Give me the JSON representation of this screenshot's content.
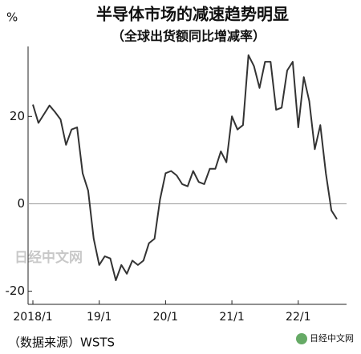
{
  "chart_data": {
    "type": "line",
    "title": "半导体市场的减速趋势明显",
    "subtitle": "（全球出货额同比增减率）",
    "ylabel": "%",
    "source": "（数据来源）WSTS",
    "watermark": "日经中文网",
    "logo": "日经中文网",
    "categories": [
      "2018/1",
      null,
      null,
      null,
      null,
      null,
      null,
      null,
      null,
      null,
      null,
      null,
      "19/1",
      null,
      null,
      null,
      null,
      null,
      null,
      null,
      null,
      null,
      null,
      null,
      "20/1",
      null,
      null,
      null,
      null,
      null,
      null,
      null,
      null,
      null,
      null,
      null,
      "21/1",
      null,
      null,
      null,
      null,
      null,
      null,
      null,
      null,
      null,
      null,
      null,
      "22/1",
      null,
      null,
      null,
      null,
      null,
      null,
      null
    ],
    "series": [
      {
        "color": "#333333",
        "values": [
          22.7,
          18.5,
          20.5,
          22.5,
          21,
          19.3,
          13.5,
          17,
          17.5,
          7,
          3,
          -8,
          -14,
          -12,
          -12.5,
          -17.5,
          -14,
          -16,
          -13,
          -14,
          -13,
          -9,
          -8,
          1,
          7,
          7.5,
          6.5,
          4.5,
          4,
          7.5,
          5,
          4.5,
          8,
          8,
          12,
          9.5,
          20,
          17,
          18,
          34,
          31.5,
          26.5,
          32.5,
          32.5,
          21.5,
          22,
          30.5,
          32.5,
          17.5,
          29,
          23.5,
          12.5,
          18,
          7,
          -1.5,
          -3.5
        ]
      }
    ],
    "ylim": [
      -23,
      36
    ],
    "yticks": [
      -20,
      0,
      20
    ]
  }
}
